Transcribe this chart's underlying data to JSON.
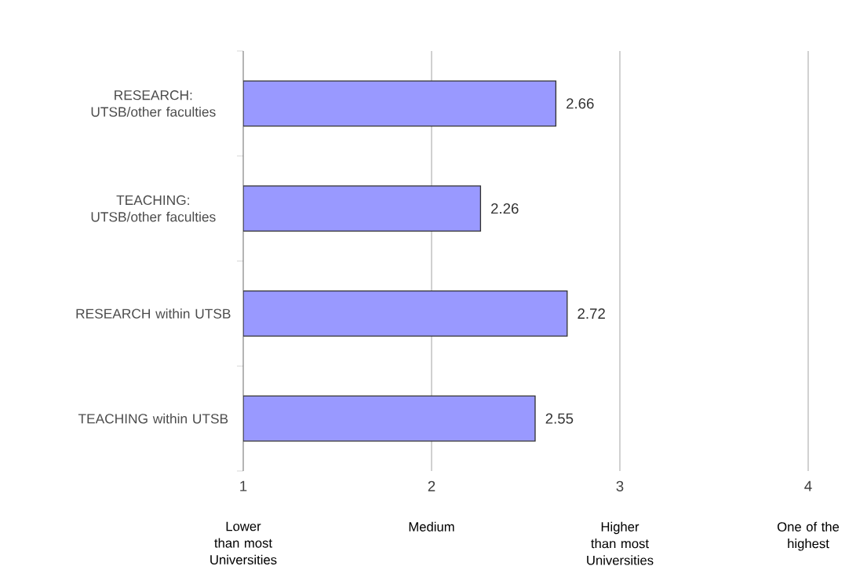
{
  "chart_data": {
    "type": "bar",
    "orientation": "horizontal",
    "categories": [
      "RESEARCH: UTSB/other faculties",
      "TEACHING:  UTSB/other faculties",
      "RESEARCH within UTSB",
      "TEACHING within UTSB"
    ],
    "values": [
      2.66,
      2.26,
      2.72,
      2.55
    ],
    "color": "#9999ff",
    "xlim": [
      1,
      4
    ],
    "xticks": [
      1,
      2,
      3,
      4
    ],
    "grid": "x",
    "data_labels": true,
    "annotations": [
      "Lower than most Universities",
      "Medium",
      "Higher than most Universities",
      "One of the highest"
    ]
  }
}
